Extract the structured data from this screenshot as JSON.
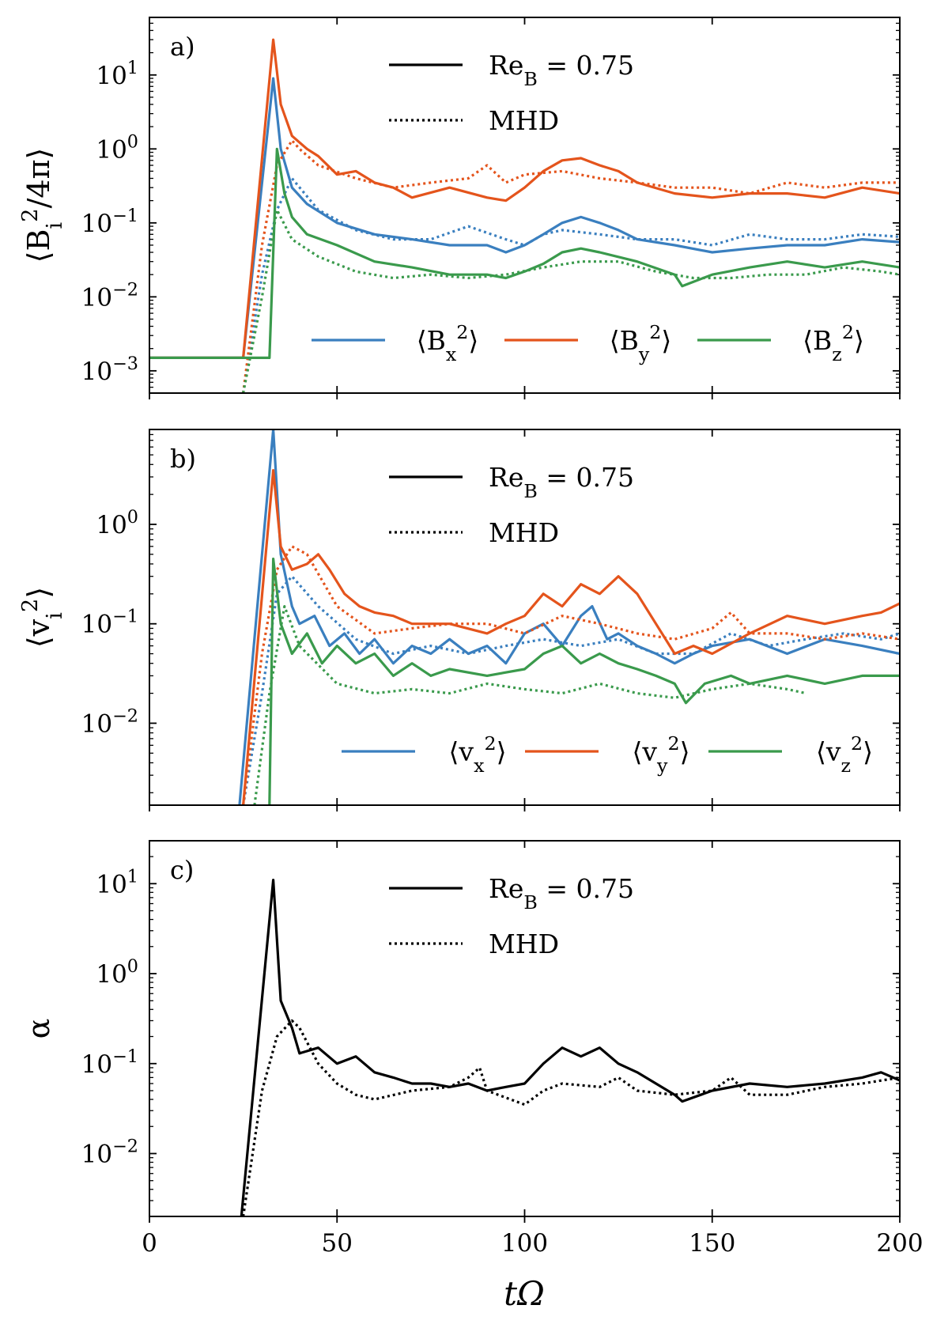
{
  "colors": {
    "x": "#3a7fbf",
    "y": "#e4541c",
    "z": "#3a9a4c",
    "alpha": "#000000"
  },
  "x_axis": {
    "label": "tΩ",
    "ticks": [
      0,
      50,
      100,
      150,
      200
    ]
  },
  "chart_data": [
    {
      "type": "line",
      "panel": "a)",
      "ylabel": "⟨B_i²/4π⟩",
      "yscale": "log",
      "ylim": [
        0.0005,
        60
      ],
      "xlim": [
        0,
        200
      ],
      "yticks": [
        {
          "value": 0.001,
          "label": "10⁻³"
        },
        {
          "value": 0.01,
          "label": "10⁻²"
        },
        {
          "value": 0.1,
          "label": "10⁻¹"
        },
        {
          "value": 1,
          "label": "10⁰"
        },
        {
          "value": 10,
          "label": "10¹"
        }
      ],
      "style_legend": [
        {
          "label": "Re_B = 0.75",
          "style": "solid"
        },
        {
          "label": "MHD",
          "style": "dotted"
        }
      ],
      "series_legend": [
        {
          "label": "⟨B_x²⟩",
          "color": "x"
        },
        {
          "label": "⟨B_y²⟩",
          "color": "y"
        },
        {
          "label": "⟨B_z²⟩",
          "color": "z"
        }
      ],
      "series": [
        {
          "name": "B_x^2 Re_B=0.75",
          "color": "x",
          "style": "solid",
          "x": [
            0,
            25,
            33,
            35,
            38,
            42,
            50,
            60,
            70,
            80,
            90,
            95,
            100,
            105,
            110,
            115,
            120,
            125,
            130,
            140,
            150,
            160,
            170,
            180,
            190,
            200
          ],
          "y": [
            0.0015,
            0.0015,
            9,
            1.0,
            0.3,
            0.18,
            0.1,
            0.07,
            0.06,
            0.05,
            0.05,
            0.04,
            0.05,
            0.07,
            0.1,
            0.12,
            0.1,
            0.08,
            0.06,
            0.05,
            0.04,
            0.045,
            0.05,
            0.05,
            0.06,
            0.055
          ]
        },
        {
          "name": "B_x^2 MHD",
          "color": "x",
          "style": "dotted",
          "x": [
            25,
            30,
            34,
            38,
            45,
            55,
            65,
            75,
            85,
            95,
            100,
            105,
            110,
            120,
            130,
            140,
            150,
            160,
            170,
            180,
            190,
            200
          ],
          "y": [
            0.0005,
            0.02,
            0.15,
            0.4,
            0.15,
            0.08,
            0.06,
            0.06,
            0.09,
            0.06,
            0.05,
            0.07,
            0.08,
            0.07,
            0.06,
            0.06,
            0.05,
            0.07,
            0.06,
            0.06,
            0.07,
            0.065
          ]
        },
        {
          "name": "B_y^2 Re_B=0.75",
          "color": "y",
          "style": "solid",
          "x": [
            0,
            25,
            33,
            35,
            38,
            42,
            45,
            50,
            55,
            60,
            65,
            70,
            80,
            90,
            95,
            100,
            105,
            110,
            115,
            120,
            125,
            130,
            140,
            150,
            160,
            170,
            180,
            190,
            200
          ],
          "y": [
            0.0015,
            0.0015,
            30,
            4,
            1.5,
            1.0,
            0.8,
            0.45,
            0.5,
            0.35,
            0.3,
            0.22,
            0.3,
            0.22,
            0.2,
            0.3,
            0.5,
            0.7,
            0.75,
            0.6,
            0.5,
            0.35,
            0.25,
            0.22,
            0.25,
            0.25,
            0.22,
            0.3,
            0.25
          ]
        },
        {
          "name": "B_y^2 MHD",
          "color": "y",
          "style": "dotted",
          "x": [
            25,
            30,
            34,
            38,
            40,
            45,
            55,
            65,
            75,
            85,
            90,
            95,
            100,
            110,
            120,
            130,
            140,
            150,
            160,
            170,
            180,
            190,
            200
          ],
          "y": [
            0.0005,
            0.05,
            0.6,
            1.3,
            1.0,
            0.6,
            0.4,
            0.3,
            0.35,
            0.4,
            0.6,
            0.35,
            0.45,
            0.5,
            0.4,
            0.35,
            0.3,
            0.3,
            0.25,
            0.35,
            0.3,
            0.35,
            0.35
          ]
        },
        {
          "name": "B_z^2 Re_B=0.75",
          "color": "z",
          "style": "solid",
          "x": [
            0,
            32,
            34,
            36,
            38,
            42,
            50,
            60,
            70,
            80,
            90,
            95,
            100,
            105,
            110,
            115,
            120,
            130,
            140,
            142,
            150,
            160,
            170,
            180,
            190,
            200
          ],
          "y": [
            0.0015,
            0.0015,
            1.0,
            0.25,
            0.12,
            0.07,
            0.05,
            0.03,
            0.025,
            0.02,
            0.02,
            0.018,
            0.022,
            0.028,
            0.04,
            0.045,
            0.04,
            0.03,
            0.02,
            0.014,
            0.02,
            0.025,
            0.03,
            0.025,
            0.03,
            0.025
          ]
        },
        {
          "name": "B_z^2 MHD",
          "color": "z",
          "style": "dotted",
          "x": [
            25,
            30,
            34,
            38,
            45,
            55,
            65,
            75,
            85,
            95,
            105,
            115,
            125,
            135,
            145,
            155,
            165,
            175,
            185,
            195,
            200
          ],
          "y": [
            0.0005,
            0.01,
            0.15,
            0.06,
            0.035,
            0.022,
            0.018,
            0.02,
            0.018,
            0.02,
            0.025,
            0.03,
            0.03,
            0.022,
            0.018,
            0.018,
            0.02,
            0.02,
            0.025,
            0.022,
            0.02
          ]
        }
      ]
    },
    {
      "type": "line",
      "panel": "b)",
      "ylabel": "⟨v_i²⟩",
      "yscale": "log",
      "ylim": [
        0.0015,
        9
      ],
      "xlim": [
        0,
        200
      ],
      "yticks": [
        {
          "value": 0.01,
          "label": "10⁻²"
        },
        {
          "value": 0.1,
          "label": "10⁻¹"
        },
        {
          "value": 1,
          "label": "10⁰"
        }
      ],
      "style_legend": [
        {
          "label": "Re_B = 0.75",
          "style": "solid"
        },
        {
          "label": "MHD",
          "style": "dotted"
        }
      ],
      "series_legend": [
        {
          "label": "⟨v_x²⟩",
          "color": "x"
        },
        {
          "label": "⟨v_y²⟩",
          "color": "y"
        },
        {
          "label": "⟨v_z²⟩",
          "color": "z"
        }
      ],
      "series": [
        {
          "name": "v_x^2 Re_B=0.75",
          "color": "x",
          "style": "solid",
          "x": [
            24,
            33,
            35,
            38,
            40,
            44,
            48,
            52,
            56,
            60,
            65,
            70,
            75,
            80,
            85,
            90,
            95,
            100,
            105,
            110,
            115,
            118,
            122,
            125,
            130,
            135,
            140,
            145,
            150,
            160,
            170,
            180,
            190,
            200
          ],
          "y": [
            0.0015,
            9,
            0.5,
            0.15,
            0.1,
            0.12,
            0.06,
            0.08,
            0.05,
            0.07,
            0.04,
            0.06,
            0.05,
            0.07,
            0.05,
            0.06,
            0.04,
            0.08,
            0.1,
            0.06,
            0.12,
            0.15,
            0.07,
            0.08,
            0.06,
            0.05,
            0.04,
            0.05,
            0.06,
            0.07,
            0.05,
            0.07,
            0.06,
            0.05
          ]
        },
        {
          "name": "v_x^2 MHD",
          "color": "x",
          "style": "dotted",
          "x": [
            25,
            30,
            34,
            38,
            45,
            55,
            65,
            75,
            85,
            95,
            105,
            115,
            125,
            135,
            145,
            155,
            165,
            175,
            185,
            195,
            200
          ],
          "y": [
            0.0015,
            0.02,
            0.2,
            0.3,
            0.15,
            0.07,
            0.05,
            0.06,
            0.05,
            0.06,
            0.07,
            0.06,
            0.07,
            0.05,
            0.05,
            0.08,
            0.06,
            0.07,
            0.08,
            0.07,
            0.08
          ]
        },
        {
          "name": "v_y^2 Re_B=0.75",
          "color": "y",
          "style": "solid",
          "x": [
            25,
            33,
            35,
            38,
            42,
            45,
            48,
            52,
            56,
            60,
            65,
            70,
            80,
            90,
            95,
            100,
            105,
            110,
            115,
            120,
            125,
            130,
            135,
            140,
            145,
            150,
            160,
            170,
            180,
            190,
            195,
            200
          ],
          "y": [
            0.0015,
            3.5,
            0.6,
            0.35,
            0.4,
            0.5,
            0.35,
            0.2,
            0.15,
            0.13,
            0.12,
            0.1,
            0.1,
            0.08,
            0.1,
            0.12,
            0.2,
            0.15,
            0.25,
            0.2,
            0.3,
            0.2,
            0.1,
            0.05,
            0.06,
            0.05,
            0.08,
            0.12,
            0.1,
            0.12,
            0.13,
            0.16
          ]
        },
        {
          "name": "v_y^2 MHD",
          "color": "y",
          "style": "dotted",
          "x": [
            25,
            30,
            34,
            38,
            42,
            50,
            60,
            70,
            80,
            90,
            100,
            110,
            120,
            130,
            140,
            150,
            155,
            160,
            170,
            180,
            190,
            200
          ],
          "y": [
            0.0015,
            0.05,
            0.35,
            0.6,
            0.5,
            0.15,
            0.08,
            0.09,
            0.1,
            0.1,
            0.08,
            0.12,
            0.1,
            0.08,
            0.07,
            0.09,
            0.13,
            0.08,
            0.08,
            0.07,
            0.08,
            0.07
          ]
        },
        {
          "name": "v_z^2 Re_B=0.75",
          "color": "z",
          "style": "solid",
          "x": [
            32,
            33,
            35,
            38,
            42,
            46,
            50,
            55,
            60,
            65,
            70,
            75,
            80,
            90,
            100,
            105,
            110,
            115,
            120,
            125,
            130,
            135,
            140,
            143,
            148,
            155,
            160,
            170,
            180,
            190,
            200
          ],
          "y": [
            0.0015,
            0.45,
            0.1,
            0.05,
            0.08,
            0.04,
            0.06,
            0.04,
            0.05,
            0.03,
            0.04,
            0.03,
            0.035,
            0.03,
            0.035,
            0.05,
            0.06,
            0.04,
            0.05,
            0.04,
            0.035,
            0.03,
            0.025,
            0.016,
            0.025,
            0.03,
            0.025,
            0.03,
            0.025,
            0.03,
            0.03
          ]
        },
        {
          "name": "v_z^2 MHD",
          "color": "z",
          "style": "dotted",
          "x": [
            28,
            32,
            36,
            40,
            50,
            60,
            70,
            80,
            90,
            100,
            110,
            120,
            130,
            140,
            150,
            160,
            170,
            175
          ],
          "y": [
            0.0015,
            0.02,
            0.15,
            0.06,
            0.025,
            0.02,
            0.022,
            0.02,
            0.025,
            0.022,
            0.02,
            0.025,
            0.02,
            0.018,
            0.022,
            0.025,
            0.022,
            0.02
          ]
        }
      ]
    },
    {
      "type": "line",
      "panel": "c)",
      "ylabel": "α",
      "yscale": "log",
      "ylim": [
        0.002,
        30
      ],
      "xlim": [
        0,
        200
      ],
      "yticks": [
        {
          "value": 0.01,
          "label": "10⁻²"
        },
        {
          "value": 0.1,
          "label": "10⁻¹"
        },
        {
          "value": 1,
          "label": "10⁰"
        },
        {
          "value": 10,
          "label": "10¹"
        }
      ],
      "style_legend": [
        {
          "label": "Re_B = 0.75",
          "style": "solid"
        },
        {
          "label": "MHD",
          "style": "dotted"
        }
      ],
      "series_legend": [],
      "series": [
        {
          "name": "alpha Re_B=0.75",
          "color": "alpha",
          "style": "solid",
          "x": [
            24.5,
            33,
            35,
            38,
            40,
            45,
            50,
            55,
            60,
            65,
            70,
            75,
            80,
            85,
            90,
            95,
            100,
            105,
            110,
            115,
            120,
            125,
            130,
            135,
            140,
            142,
            150,
            160,
            170,
            180,
            190,
            195,
            200
          ],
          "y": [
            0.002,
            11,
            0.5,
            0.25,
            0.13,
            0.15,
            0.1,
            0.12,
            0.08,
            0.07,
            0.06,
            0.06,
            0.055,
            0.06,
            0.05,
            0.055,
            0.06,
            0.1,
            0.15,
            0.12,
            0.15,
            0.1,
            0.08,
            0.06,
            0.045,
            0.038,
            0.05,
            0.06,
            0.055,
            0.06,
            0.07,
            0.08,
            0.065
          ]
        },
        {
          "name": "alpha MHD",
          "color": "alpha",
          "style": "dotted",
          "x": [
            25,
            30,
            34,
            38,
            40,
            45,
            50,
            55,
            60,
            70,
            80,
            85,
            88,
            90,
            100,
            105,
            110,
            120,
            125,
            130,
            140,
            150,
            155,
            160,
            170,
            180,
            190,
            200
          ],
          "y": [
            0.002,
            0.05,
            0.2,
            0.3,
            0.25,
            0.1,
            0.06,
            0.045,
            0.04,
            0.05,
            0.055,
            0.07,
            0.09,
            0.05,
            0.035,
            0.05,
            0.06,
            0.055,
            0.07,
            0.05,
            0.045,
            0.05,
            0.07,
            0.045,
            0.045,
            0.055,
            0.06,
            0.07
          ]
        }
      ]
    }
  ]
}
